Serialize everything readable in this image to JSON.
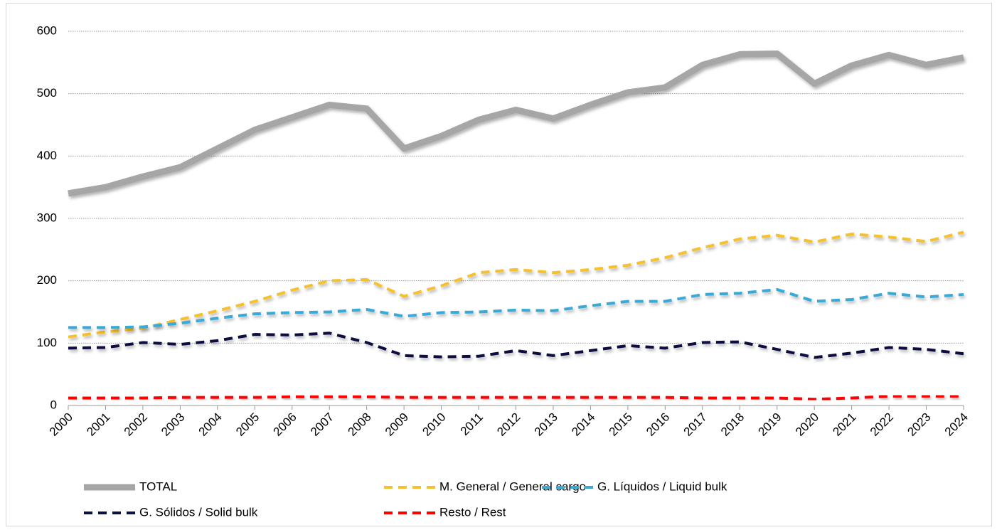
{
  "chart_data": {
    "type": "line",
    "x": [
      2000,
      2001,
      2002,
      2003,
      2004,
      2005,
      2006,
      2007,
      2008,
      2009,
      2010,
      2011,
      2012,
      2013,
      2014,
      2015,
      2016,
      2017,
      2018,
      2019,
      2020,
      2021,
      2022,
      2023,
      2024
    ],
    "xlim": [
      2000,
      2024
    ],
    "ylim": [
      0,
      600
    ],
    "yticks": [
      0,
      100,
      200,
      300,
      400,
      500,
      600
    ],
    "grid": true,
    "legend": "bottom",
    "series": [
      {
        "name": "TOTAL",
        "color": "#a6a6a6",
        "style": "solid",
        "values": [
          340,
          350,
          367,
          382,
          412,
          442,
          462,
          482,
          476,
          412,
          432,
          458,
          474,
          460,
          482,
          502,
          510,
          546,
          563,
          564,
          516,
          545,
          562,
          546,
          558
        ]
      },
      {
        "name": "M. General / General cargo",
        "color": "#f5c12e",
        "style": "dashed",
        "values": [
          110,
          118,
          124,
          138,
          152,
          167,
          185,
          200,
          202,
          175,
          192,
          213,
          218,
          213,
          218,
          225,
          237,
          253,
          267,
          273,
          262,
          275,
          270,
          263,
          278
        ]
      },
      {
        "name": "G. Líquidos / Liquid bulk",
        "color": "#3aa9d6",
        "style": "dashed",
        "values": [
          125,
          125,
          126,
          132,
          140,
          147,
          149,
          150,
          154,
          143,
          149,
          150,
          153,
          152,
          160,
          167,
          167,
          178,
          180,
          186,
          167,
          170,
          180,
          174,
          178
        ]
      },
      {
        "name": "G. Sólidos / Solid bulk",
        "color": "#0b1140",
        "style": "dashed",
        "values": [
          92,
          93,
          101,
          98,
          104,
          114,
          113,
          116,
          101,
          80,
          78,
          79,
          88,
          80,
          88,
          96,
          92,
          101,
          102,
          90,
          77,
          84,
          93,
          90,
          83
        ]
      },
      {
        "name": "Resto / Rest",
        "color": "#ff0000",
        "style": "dashed",
        "values": [
          12,
          12,
          12,
          13,
          13,
          13,
          14,
          14,
          14,
          13,
          13,
          13,
          13,
          13,
          13,
          13,
          13,
          12,
          12,
          12,
          10,
          12,
          15,
          15,
          15
        ]
      }
    ]
  }
}
